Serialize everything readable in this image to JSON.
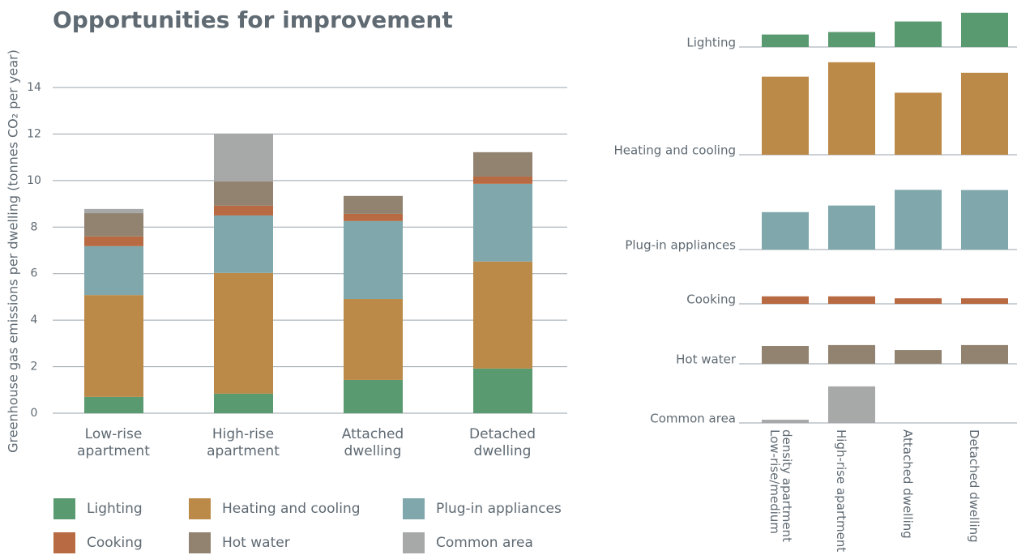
{
  "chart_data": [
    {
      "type": "stacked-bar",
      "title": "Opportunities for improvement",
      "y_label": "Greenhouse gas emissions per dwelling (tonnes CO₂ per year)",
      "categories": [
        "Low-rise apartment",
        "High-rise apartment",
        "Attached dwelling",
        "Detached dwelling"
      ],
      "series": [
        {
          "name": "Lighting",
          "color": "#5a9a70",
          "values": [
            0.7,
            0.84,
            1.43,
            1.92
          ]
        },
        {
          "name": "Heating and cooling",
          "color": "#bb8a48",
          "values": [
            4.38,
            5.19,
            3.48,
            4.6
          ]
        },
        {
          "name": "Plug-in appliances",
          "color": "#80a7ab",
          "values": [
            2.1,
            2.47,
            3.35,
            3.34
          ]
        },
        {
          "name": "Cooking",
          "color": "#b86a42",
          "values": [
            0.42,
            0.42,
            0.31,
            0.31
          ]
        },
        {
          "name": "Hot water",
          "color": "#928371",
          "values": [
            1.0,
            1.05,
            0.77,
            1.05
          ]
        },
        {
          "name": "Common area",
          "color": "#a7a8a8",
          "values": [
            0.18,
            2.05,
            0,
            0
          ]
        }
      ],
      "ylim": [
        0,
        14
      ],
      "yticks": [
        0,
        2,
        4,
        6,
        8,
        10,
        12,
        14
      ],
      "grid": true
    },
    {
      "type": "small-multiples",
      "categories": [
        "Low-rise/medium density apartment",
        "High-rise apartment",
        "Attached dwelling",
        "Detached dwelling"
      ],
      "series": [
        {
          "name": "Lighting",
          "color": "#5a9a70",
          "values": [
            0.7,
            0.84,
            1.43,
            1.92
          ]
        },
        {
          "name": "Heating and cooling",
          "color": "#bb8a48",
          "values": [
            4.38,
            5.19,
            3.48,
            4.6
          ]
        },
        {
          "name": "Plug-in appliances",
          "color": "#80a7ab",
          "values": [
            2.1,
            2.47,
            3.35,
            3.34
          ]
        },
        {
          "name": "Cooking",
          "color": "#b86a42",
          "values": [
            0.42,
            0.42,
            0.31,
            0.31
          ]
        },
        {
          "name": "Hot water",
          "color": "#928371",
          "values": [
            1.0,
            1.05,
            0.77,
            1.05
          ]
        },
        {
          "name": "Common area",
          "color": "#a7a8a8",
          "values": [
            0.18,
            2.05,
            0,
            0
          ]
        }
      ]
    }
  ]
}
